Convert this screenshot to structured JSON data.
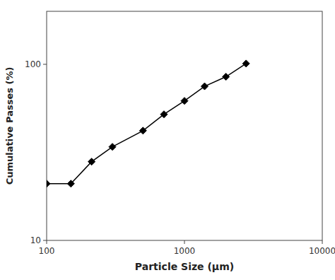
{
  "chart_data": {
    "type": "line",
    "x": [
      100,
      150,
      212,
      300,
      500,
      710,
      1000,
      1400,
      2000,
      2800
    ],
    "values": [
      21,
      21,
      28,
      34,
      42,
      52,
      62,
      75,
      85,
      101
    ],
    "xlabel": "Particle Size (μm)",
    "ylabel": "Cumulative Passes (%)",
    "xlim": [
      100,
      10000
    ],
    "ylim": [
      10,
      200
    ],
    "xticks": [
      100,
      1000,
      10000
    ],
    "yticks": [
      10,
      100
    ],
    "log": true,
    "grid": false,
    "color": "#000000",
    "marker": "diamond"
  }
}
